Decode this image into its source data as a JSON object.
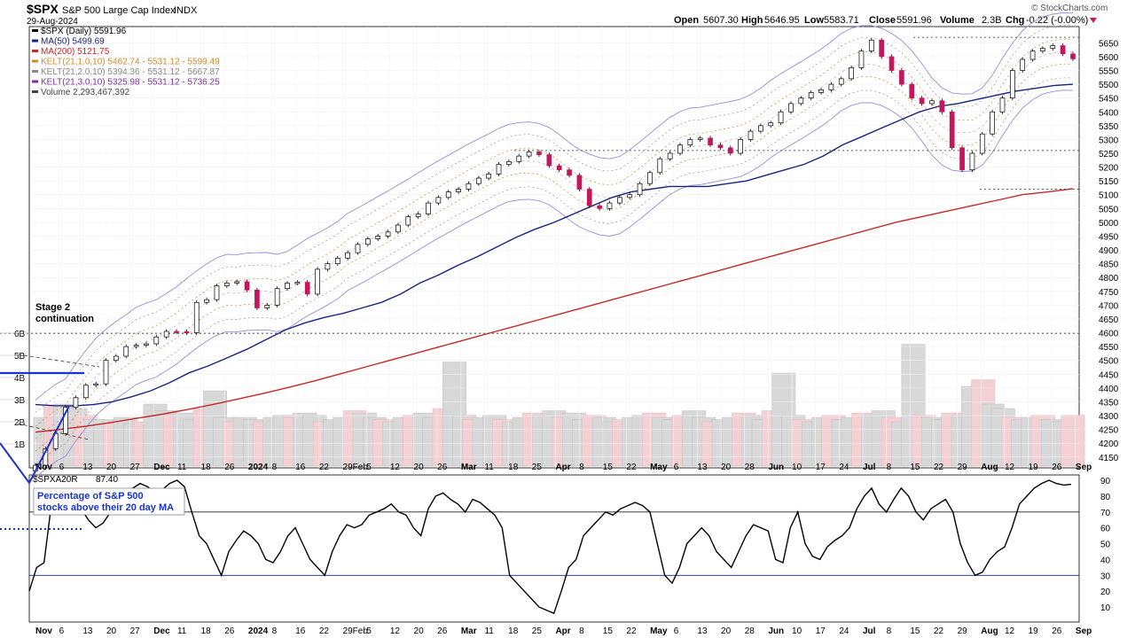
{
  "header": {
    "symbol": "$SPX",
    "name": "S&P 500 Large Cap Index",
    "exchange": "INDX",
    "date": "29-Aug-2024",
    "open_label": "Open",
    "open": "5607.30",
    "high_label": "High",
    "high": "5646.95",
    "low_label": "Low",
    "low": "5583.71",
    "close_label": "Close",
    "close": "5591.96",
    "volume_label": "Volume",
    "volume": "2.3B",
    "chg_label": "Chg",
    "chg": "-0.22 (-0.00%)",
    "watermark": "© StockCharts.com"
  },
  "legend": [
    {
      "text": "$SPX (Daily) 5591.96",
      "color": "#000000"
    },
    {
      "text": "MA(50) 5499.69",
      "color": "#1a237e"
    },
    {
      "text": "MA(200) 5121.75",
      "color": "#c62828"
    },
    {
      "text": "KELT(21,1.0,10) 5462.74 - 5531.12 - 5599.49",
      "color": "#d08a2c"
    },
    {
      "text": "KELT(21,2.0,10) 5394.36 - 5531.12 - 5667.87",
      "color": "#888888"
    },
    {
      "text": "KELT(21,3.0,10) 5325.98 - 5531.12 - 5736.25",
      "color": "#7b2f9e"
    },
    {
      "text": "Volume 2,293,467,392",
      "color": "#444444"
    }
  ],
  "annotations": {
    "stage2_line1": "Stage 2",
    "stage2_line2": "continuation",
    "breadth_line1": "Percentage of S&P 500",
    "breadth_line2": "stocks above their 20 day MA"
  },
  "indicator": {
    "symbol": "$SPXA20R",
    "value": "87.40",
    "upper_level": 70,
    "lower_level": 30
  },
  "colors": {
    "up": "#ffffff",
    "down": "#c2185b",
    "ma50": "#1a237e",
    "ma200": "#c62828",
    "kelt1": "#d08a2c",
    "kelt2": "#999999",
    "kelt3": "#9c8cd8",
    "annotation": "#1a33cc"
  },
  "chart_data": [
    {
      "type": "candlestick",
      "title": "$SPX S&P 500 Large Cap Index",
      "period": "Daily",
      "ylim": [
        4100,
        5700
      ],
      "y_ticks": [
        4150,
        4200,
        4250,
        4300,
        4350,
        4400,
        4450,
        4500,
        4550,
        4600,
        4650,
        4700,
        4750,
        4800,
        4850,
        4900,
        4950,
        5000,
        5050,
        5100,
        5150,
        5200,
        5250,
        5300,
        5350,
        5400,
        5450,
        5500,
        5550,
        5600,
        5650
      ],
      "x_ticks": [
        "Nov",
        "6",
        "13",
        "20",
        "27",
        "Dec",
        "11",
        "18",
        "26",
        "2024",
        "8",
        "16",
        "22",
        "29Feb",
        "5",
        "12",
        "20",
        "26",
        "Mar",
        "11",
        "18",
        "25",
        "Apr",
        "8",
        "15",
        "22",
        "May",
        "6",
        "13",
        "20",
        "28",
        "Jun",
        "10",
        "17",
        "24",
        "Jul",
        "8",
        "15",
        "22",
        "29",
        "Aug",
        "12",
        "19",
        "26",
        "Sep"
      ],
      "close_series": [
        4120,
        4180,
        4235,
        4330,
        4365,
        4410,
        4415,
        4500,
        4515,
        4550,
        4555,
        4560,
        4585,
        4605,
        4604,
        4600,
        4710,
        4720,
        4770,
        4780,
        4785,
        4755,
        4690,
        4700,
        4760,
        4780,
        4783,
        4740,
        4830,
        4850,
        4870,
        4890,
        4920,
        4940,
        4950,
        4965,
        4990,
        5020,
        5030,
        5070,
        5090,
        5110,
        5120,
        5140,
        5160,
        5175,
        5210,
        5220,
        5240,
        5255,
        5245,
        5205,
        5190,
        5170,
        5120,
        5060,
        5050,
        5070,
        5090,
        5100,
        5140,
        5180,
        5230,
        5250,
        5280,
        5300,
        5305,
        5280,
        5270,
        5250,
        5300,
        5330,
        5350,
        5360,
        5400,
        5430,
        5450,
        5470,
        5480,
        5500,
        5520,
        5560,
        5620,
        5660,
        5600,
        5550,
        5500,
        5450,
        5430,
        5440,
        5400,
        5270,
        5190,
        5250,
        5320,
        5400,
        5450,
        5550,
        5590,
        5620,
        5630,
        5640,
        5610,
        5592
      ],
      "ma50": [
        4340,
        4336,
        4335,
        4340,
        4350,
        4368,
        4390,
        4420,
        4455,
        4480,
        4510,
        4540,
        4575,
        4610,
        4635,
        4655,
        4670,
        4690,
        4710,
        4740,
        4780,
        4810,
        4845,
        4875,
        4910,
        4945,
        4975,
        5000,
        5030,
        5060,
        5090,
        5110,
        5120,
        5130,
        5130,
        5130,
        5140,
        5150,
        5170,
        5190,
        5210,
        5240,
        5280,
        5310,
        5340,
        5370,
        5400,
        5420,
        5430,
        5445,
        5460,
        5475,
        5485,
        5495,
        5500
      ],
      "ma200": [
        4240,
        4250,
        4262,
        4275,
        4290,
        4305,
        4322,
        4340,
        4360,
        4380,
        4402,
        4425,
        4450,
        4475,
        4500,
        4525,
        4550,
        4575,
        4600,
        4625,
        4650,
        4675,
        4700,
        4725,
        4750,
        4775,
        4800,
        4825,
        4850,
        4875,
        4900,
        4925,
        4950,
        4975,
        5000,
        5020,
        5040,
        5060,
        5080,
        5100,
        5110,
        5122
      ],
      "support_levels": [
        5260,
        5120,
        4598
      ],
      "resistance_level": 5670,
      "volume_scale": [
        "1B",
        "2B",
        "3B",
        "4B",
        "5B",
        "6B"
      ],
      "volume": [
        2.2,
        2.7,
        2.8,
        2.6,
        2.3,
        2.1,
        2.1,
        2.0,
        2.2,
        1.9,
        2.0,
        2.8,
        2.5,
        2.3,
        2.4,
        2.1,
        2.6,
        3.4,
        2.2,
        2.0,
        2.2,
        2.1,
        2.0,
        2.2,
        2.3,
        2.2,
        2.4,
        2.3,
        2.0,
        2.1,
        2.2,
        2.5,
        2.4,
        2.2,
        2.1,
        2.0,
        2.2,
        2.3,
        2.4,
        2.2,
        2.6,
        4.7,
        2.3,
        2.1,
        2.2,
        2.3,
        2.1,
        2.0,
        2.2,
        2.4,
        2.3,
        2.5,
        2.2,
        2.4,
        2.1,
        2.3,
        2.2,
        2.0,
        2.1,
        2.2,
        2.3,
        2.4,
        2.2,
        2.1,
        2.3,
        2.5,
        2.2,
        2.0,
        2.1,
        2.2,
        2.4,
        2.3,
        2.1,
        2.5,
        4.2,
        2.3,
        2.1,
        2.0,
        2.2,
        2.3,
        2.1,
        2.2,
        2.4,
        2.3,
        2.5,
        2.2,
        2.0,
        5.5,
        2.3,
        2.2,
        2.1,
        2.4,
        2.3,
        3.6,
        3.9,
        2.8,
        2.6,
        2.2,
        2.1,
        2.2,
        2.3,
        2.1,
        2.0,
        2.3
      ]
    },
    {
      "type": "line",
      "title": "$SPXA20R",
      "ylim": [
        0,
        95
      ],
      "y_ticks": [
        10,
        20,
        30,
        40,
        50,
        60,
        70,
        80,
        90
      ],
      "values": [
        20,
        35,
        38,
        75,
        82,
        80,
        78,
        72,
        65,
        60,
        63,
        70,
        75,
        80,
        85,
        88,
        86,
        82,
        84,
        88,
        90,
        86,
        70,
        55,
        50,
        40,
        30,
        45,
        52,
        58,
        55,
        50,
        40,
        38,
        45,
        55,
        60,
        50,
        40,
        35,
        30,
        45,
        55,
        62,
        60,
        62,
        68,
        70,
        72,
        75,
        70,
        68,
        60,
        55,
        72,
        80,
        82,
        78,
        75,
        70,
        78,
        76,
        72,
        68,
        60,
        30,
        25,
        20,
        15,
        10,
        8,
        6,
        20,
        35,
        40,
        55,
        60,
        65,
        70,
        68,
        72,
        74,
        76,
        74,
        70,
        50,
        30,
        25,
        35,
        50,
        55,
        60,
        55,
        45,
        40,
        35,
        45,
        55,
        62,
        60,
        58,
        40,
        38,
        60,
        70,
        50,
        42,
        40,
        48,
        52,
        55,
        60,
        72,
        80,
        85,
        75,
        70,
        78,
        85,
        80,
        70,
        65,
        72,
        75,
        78,
        70,
        50,
        38,
        30,
        32,
        40,
        45,
        48,
        60,
        75,
        80,
        85,
        88,
        90,
        88,
        87,
        87.4
      ]
    }
  ]
}
